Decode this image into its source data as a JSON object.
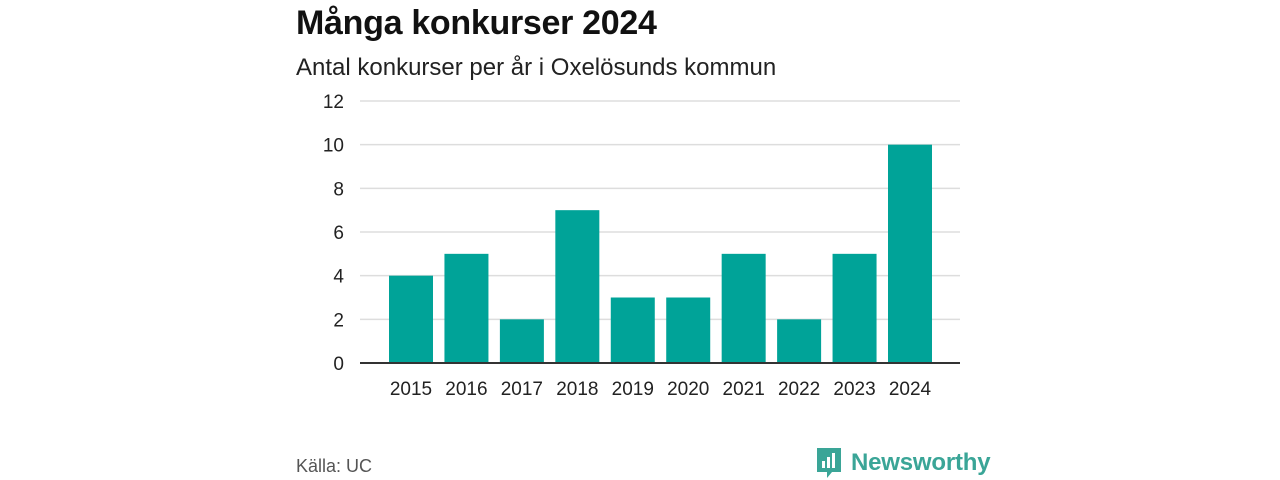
{
  "title": "Många konkurser 2024",
  "subtitle": "Antal konkurser per år i Oxelösunds kommun",
  "source": "Källa: UC",
  "brand": {
    "name": "Newsworthy",
    "icon": "bar-chart-logo-icon",
    "color": "#3aa597"
  },
  "chart_data": {
    "type": "bar",
    "categories": [
      "2015",
      "2016",
      "2017",
      "2018",
      "2019",
      "2020",
      "2021",
      "2022",
      "2023",
      "2024"
    ],
    "values": [
      4,
      5,
      2,
      7,
      3,
      3,
      5,
      2,
      5,
      10
    ],
    "title": "Många konkurser 2024",
    "subtitle": "Antal konkurser per år i Oxelösunds kommun",
    "xlabel": "",
    "ylabel": "",
    "ylim": [
      0,
      12
    ],
    "yticks": [
      "0",
      "2",
      "4",
      "6",
      "8",
      "10",
      "12"
    ],
    "bar_color": "#00a398",
    "grid": true,
    "legend": "none"
  }
}
